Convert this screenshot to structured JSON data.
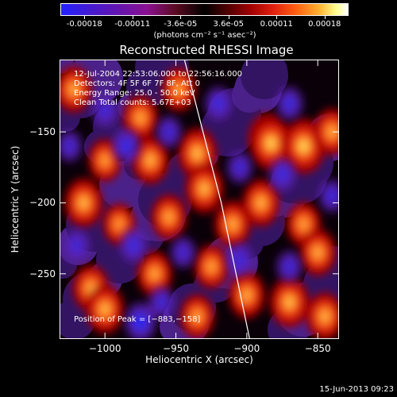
{
  "colorbar": {
    "tick_labels": [
      "-0.00018",
      "-0.00011",
      "-3.6e-05",
      "3.6e-05",
      "0.00011",
      "0.00018"
    ],
    "unit_label": "(photons cm⁻² s⁻¹ asec⁻²)",
    "colors": [
      "#2222ff",
      "#6a14a8",
      "#000000",
      "#a00000",
      "#ff6010",
      "#ffffff"
    ]
  },
  "chart_data": {
    "type": "heatmap",
    "title": "Reconstructed RHESSI Image",
    "xlabel": "Heliocentric X (arcsec)",
    "ylabel": "Heliocentric Y (arcsec)",
    "xlim": [
      -1032,
      -835
    ],
    "ylim": [
      -296,
      -99
    ],
    "x_ticks": [
      -1000,
      -950,
      -900,
      -850
    ],
    "y_ticks": [
      -150,
      -200,
      -250
    ],
    "x_tick_labels": [
      "−1000",
      "−950",
      "−900",
      "−850"
    ],
    "y_tick_labels": [
      "−150",
      "−200",
      "−250"
    ],
    "limb_line": [
      [
        -944,
        -99
      ],
      [
        -918,
        -200
      ],
      [
        -898,
        -296
      ]
    ],
    "hot_spots": [
      {
        "x": -1022,
        "y": -120,
        "v": 0.6
      },
      {
        "x": -1000,
        "y": -170,
        "v": 0.45
      },
      {
        "x": -1015,
        "y": -200,
        "v": 0.7
      },
      {
        "x": -990,
        "y": -215,
        "v": 0.4
      },
      {
        "x": -975,
        "y": -140,
        "v": 0.55
      },
      {
        "x": -968,
        "y": -170,
        "v": 0.65
      },
      {
        "x": -948,
        "y": -120,
        "v": 0.5
      },
      {
        "x": -935,
        "y": -165,
        "v": 0.75
      },
      {
        "x": -930,
        "y": -190,
        "v": 0.7
      },
      {
        "x": -910,
        "y": -215,
        "v": 0.6
      },
      {
        "x": -885,
        "y": -155,
        "v": 0.8
      },
      {
        "x": -883,
        "y": -158,
        "v": 0.9
      },
      {
        "x": -860,
        "y": -160,
        "v": 0.95
      },
      {
        "x": -840,
        "y": -150,
        "v": 0.6
      },
      {
        "x": -890,
        "y": -200,
        "v": 0.65
      },
      {
        "x": -860,
        "y": -215,
        "v": 0.5
      },
      {
        "x": -850,
        "y": -235,
        "v": 0.6
      },
      {
        "x": -1010,
        "y": -260,
        "v": 0.6
      },
      {
        "x": -1000,
        "y": -275,
        "v": 0.7
      },
      {
        "x": -965,
        "y": -250,
        "v": 0.55
      },
      {
        "x": -925,
        "y": -245,
        "v": 0.5
      },
      {
        "x": -900,
        "y": -265,
        "v": 0.6
      },
      {
        "x": -870,
        "y": -270,
        "v": 0.75
      },
      {
        "x": -845,
        "y": -280,
        "v": 0.65
      },
      {
        "x": -935,
        "y": -280,
        "v": 0.5
      },
      {
        "x": -955,
        "y": -210,
        "v": 0.55
      }
    ],
    "cold_spots": [
      {
        "x": -1000,
        "y": -135,
        "v": 0.5
      },
      {
        "x": -985,
        "y": -160,
        "v": 0.7
      },
      {
        "x": -955,
        "y": -150,
        "v": 0.5
      },
      {
        "x": -920,
        "y": -130,
        "v": 0.6
      },
      {
        "x": -905,
        "y": -175,
        "v": 0.5
      },
      {
        "x": -870,
        "y": -130,
        "v": 0.6
      },
      {
        "x": -875,
        "y": -180,
        "v": 0.6
      },
      {
        "x": -980,
        "y": -230,
        "v": 0.6
      },
      {
        "x": -945,
        "y": -235,
        "v": 0.45
      },
      {
        "x": -905,
        "y": -240,
        "v": 0.55
      },
      {
        "x": -870,
        "y": -245,
        "v": 0.5
      },
      {
        "x": -1020,
        "y": -230,
        "v": 0.5
      },
      {
        "x": -975,
        "y": -284,
        "v": 0.95
      },
      {
        "x": -960,
        "y": -270,
        "v": 0.5
      },
      {
        "x": -840,
        "y": -195,
        "v": 0.55
      },
      {
        "x": -1025,
        "y": -160,
        "v": 0.45
      }
    ]
  },
  "info": {
    "line1": "12-Jul-2004 22:53:06.000 to 22:56:16.000",
    "line2": "Detectors: 4F 5F 6F 7F 8F, Att 0",
    "line3": "Energy Range: 25.0 - 50.0 keV",
    "line4": "Clean     Total counts: 5.67E+03"
  },
  "peak_label": "Position of Peak = [−883,−158]",
  "timestamp": "15-Jun-2013 09:23"
}
